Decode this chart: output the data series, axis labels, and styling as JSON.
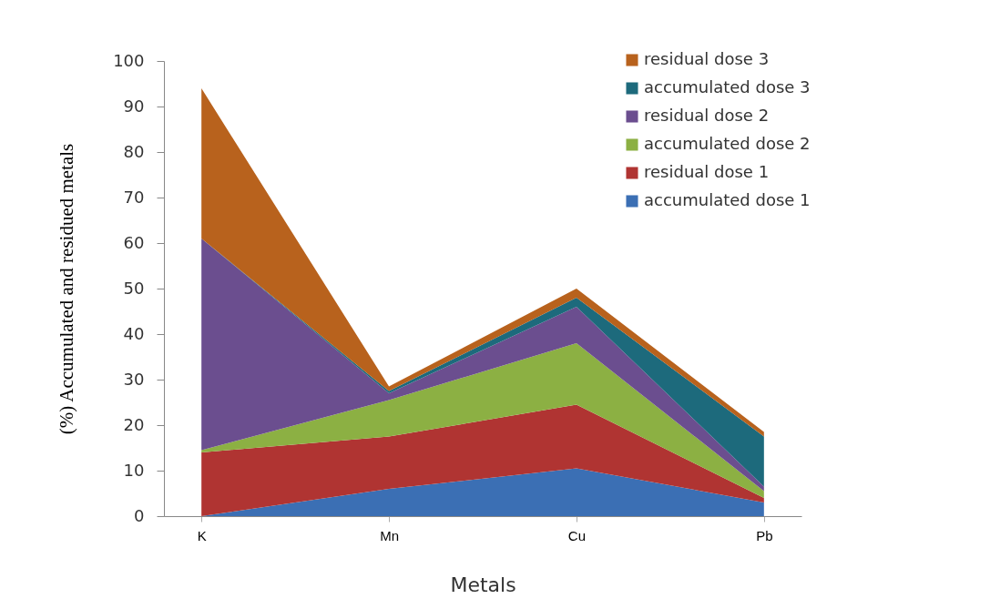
{
  "chart_data": {
    "type": "area",
    "stacked": true,
    "xlabel": "Metals",
    "ylabel": "(%) Accumulated and residued metals",
    "categories": [
      "K",
      "Mn",
      "Cu",
      "Pb"
    ],
    "series": [
      {
        "name": "accumulated dose 1",
        "color": "#3b6fb4",
        "values": [
          0,
          6,
          10.5,
          3
        ]
      },
      {
        "name": "residual dose 1",
        "color": "#b03432",
        "values": [
          14,
          11.5,
          14,
          1
        ]
      },
      {
        "name": "accumulated dose 2",
        "color": "#8cb043",
        "values": [
          0.5,
          8,
          13.5,
          1.5
        ]
      },
      {
        "name": "residual dose 2",
        "color": "#6b4e8f",
        "values": [
          46.5,
          1.5,
          8,
          1
        ]
      },
      {
        "name": "accumulated dose 3",
        "color": "#1d6a7c",
        "values": [
          0,
          0.5,
          2,
          11
        ]
      },
      {
        "name": "residual dose 3",
        "color": "#b8621d",
        "values": [
          33,
          1,
          2,
          1
        ]
      }
    ],
    "ylim": [
      0,
      100
    ],
    "yticks": [
      0,
      10,
      20,
      30,
      40,
      50,
      60,
      70,
      80,
      90,
      100
    ],
    "legend": "top right"
  }
}
